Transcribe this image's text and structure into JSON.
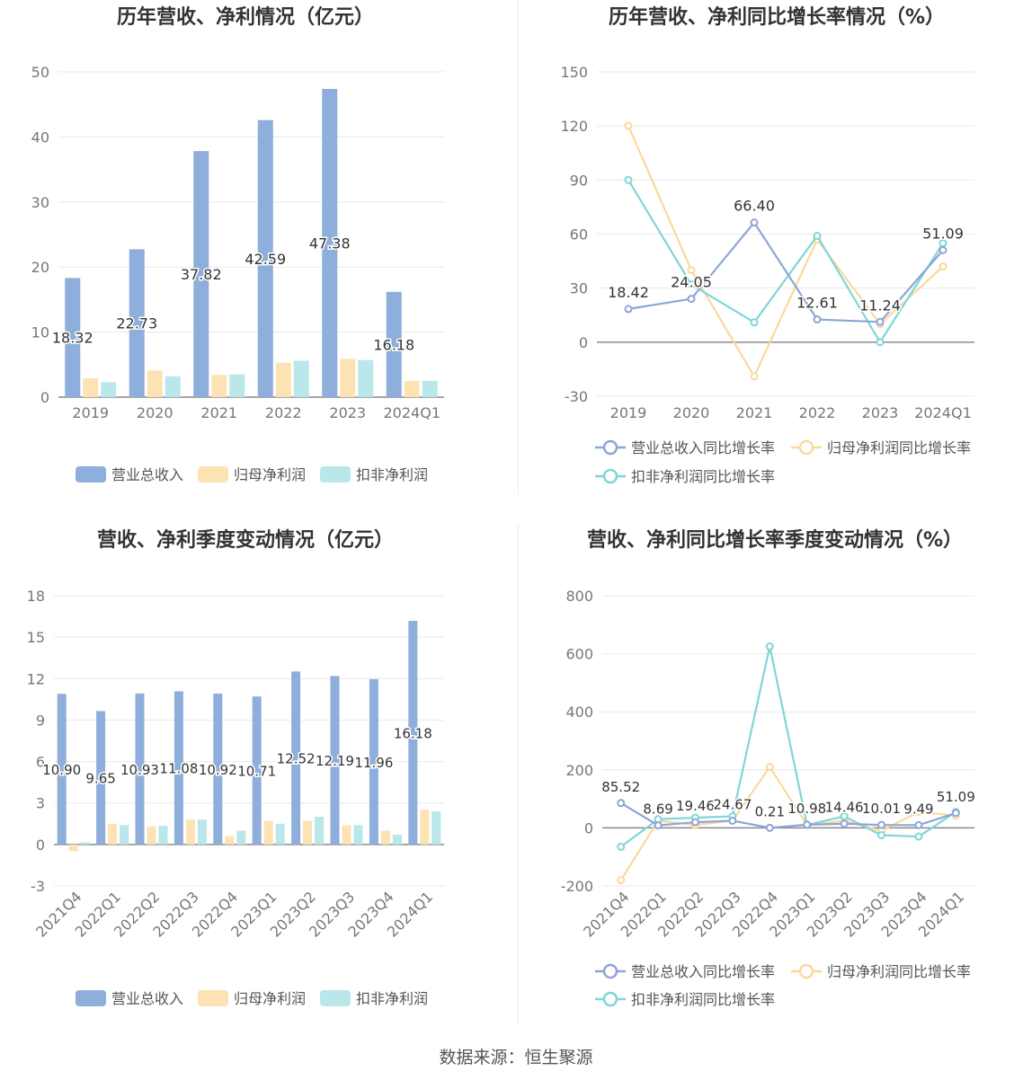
{
  "footer": {
    "source": "数据来源：恒生聚源"
  },
  "colors": {
    "revenue": "#8eaedb",
    "net_profit": "#fde2b4",
    "deducted_profit": "#8fd8da",
    "revenue_line": "#8ea5d6",
    "net_profit_line": "#fbd99a",
    "deducted_line": "#7fd6d8"
  },
  "chart_data": [
    {
      "id": "annual-values",
      "type": "bar",
      "title": "历年营收、净利情况（亿元）",
      "categories": [
        "2019",
        "2020",
        "2021",
        "2022",
        "2023",
        "2024Q1"
      ],
      "ylim": [
        0,
        50
      ],
      "yticks": [
        0,
        10,
        20,
        30,
        40,
        50
      ],
      "grid": true,
      "legend_position": "bottom",
      "series": [
        {
          "name": "营业总收入",
          "color": "#8eaedb",
          "labels": true,
          "values": [
            18.32,
            22.73,
            37.82,
            42.59,
            47.38,
            16.18
          ]
        },
        {
          "name": "归母净利润",
          "color": "#fde2b4",
          "labels": false,
          "values": [
            2.9,
            4.1,
            3.4,
            5.3,
            5.9,
            2.5
          ]
        },
        {
          "name": "扣非净利润",
          "color": "#b9e7ea",
          "labels": false,
          "values": [
            2.3,
            3.2,
            3.5,
            5.6,
            5.7,
            2.5
          ]
        }
      ]
    },
    {
      "id": "annual-growth",
      "type": "line",
      "title": "历年营收、净利同比增长率情况（%）",
      "categories": [
        "2019",
        "2020",
        "2021",
        "2022",
        "2023",
        "2024Q1"
      ],
      "ylim": [
        -30,
        150
      ],
      "yticks": [
        -30,
        0,
        30,
        60,
        90,
        120,
        150
      ],
      "grid": true,
      "legend_position": "bottom",
      "series": [
        {
          "name": "营业总收入同比增长率",
          "color": "#8ea5d6",
          "labels": true,
          "values": [
            18.42,
            24.05,
            66.4,
            12.61,
            11.24,
            51.09
          ]
        },
        {
          "name": "归母净利润同比增长率",
          "color": "#fbd99a",
          "labels": false,
          "values": [
            120,
            40,
            -19,
            57,
            10,
            42
          ]
        },
        {
          "name": "扣非净利润同比增长率",
          "color": "#7fd6d8",
          "labels": false,
          "values": [
            90,
            32,
            11,
            59,
            0,
            55
          ]
        }
      ]
    },
    {
      "id": "quarterly-values",
      "type": "bar",
      "title": "营收、净利季度变动情况（亿元）",
      "categories": [
        "2021Q4",
        "2022Q1",
        "2022Q2",
        "2022Q3",
        "2022Q4",
        "2023Q1",
        "2023Q2",
        "2023Q3",
        "2023Q4",
        "2024Q1"
      ],
      "ylim": [
        -3,
        18
      ],
      "yticks": [
        -3,
        0,
        3,
        6,
        9,
        12,
        15,
        18
      ],
      "grid": true,
      "legend_position": "bottom",
      "series": [
        {
          "name": "营业总收入",
          "color": "#8eaedb",
          "labels": true,
          "values": [
            10.9,
            9.65,
            10.93,
            11.08,
            10.92,
            10.71,
            12.52,
            12.19,
            11.96,
            16.18
          ]
        },
        {
          "name": "归母净利润",
          "color": "#fde2b4",
          "labels": false,
          "values": [
            -0.5,
            1.5,
            1.3,
            1.8,
            0.6,
            1.7,
            1.7,
            1.4,
            1.0,
            2.5
          ]
        },
        {
          "name": "扣非净利润",
          "color": "#b9e7ea",
          "labels": false,
          "values": [
            0.15,
            1.4,
            1.35,
            1.8,
            1.0,
            1.5,
            2.0,
            1.4,
            0.7,
            2.4
          ]
        }
      ]
    },
    {
      "id": "quarterly-growth",
      "type": "line",
      "title": "营收、净利同比增长率季度变动情况（%）",
      "categories": [
        "2021Q4",
        "2022Q1",
        "2022Q2",
        "2022Q3",
        "2022Q4",
        "2023Q1",
        "2023Q2",
        "2023Q3",
        "2023Q4",
        "2024Q1"
      ],
      "ylim": [
        -200,
        800
      ],
      "yticks": [
        -200,
        0,
        200,
        400,
        600,
        800
      ],
      "grid": true,
      "legend_position": "bottom",
      "series": [
        {
          "name": "营业总收入同比增长率",
          "color": "#8ea5d6",
          "labels": true,
          "values": [
            85.52,
            8.69,
            19.46,
            24.67,
            0.21,
            10.98,
            14.46,
            10.01,
            9.49,
            51.09
          ]
        },
        {
          "name": "归母净利润同比增长率",
          "color": "#fbd99a",
          "labels": false,
          "values": [
            -180,
            25,
            10,
            25,
            210,
            10,
            25,
            -10,
            55,
            42
          ]
        },
        {
          "name": "扣非净利润同比增长率",
          "color": "#7fd6d8",
          "labels": false,
          "values": [
            -65,
            30,
            35,
            40,
            625,
            10,
            40,
            -25,
            -30,
            55
          ]
        }
      ]
    }
  ]
}
